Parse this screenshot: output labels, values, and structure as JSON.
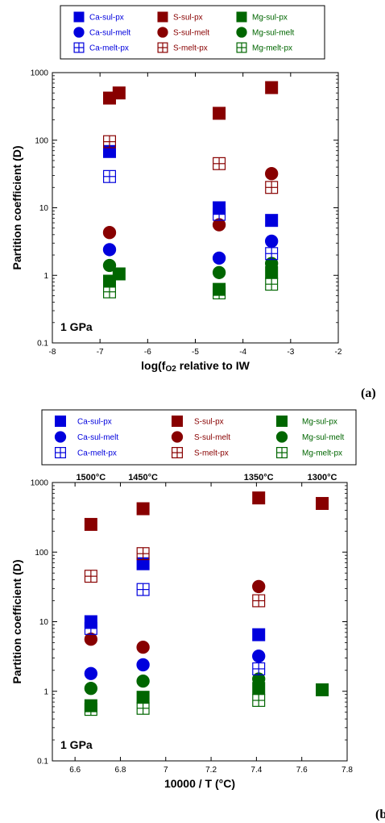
{
  "colors": {
    "Ca": "#0000dd",
    "S": "#880000",
    "Mg": "#006600"
  },
  "legend_items": [
    {
      "label": "Ca-sul-px",
      "el": "Ca",
      "mk": "fsq"
    },
    {
      "label": "S-sul-px",
      "el": "S",
      "mk": "fsq"
    },
    {
      "label": "Mg-sul-px",
      "el": "Mg",
      "mk": "fsq"
    },
    {
      "label": "Ca-sul-melt",
      "el": "Ca",
      "mk": "circ"
    },
    {
      "label": "S-sul-melt",
      "el": "S",
      "mk": "circ"
    },
    {
      "label": "Mg-sul-melt",
      "el": "Mg",
      "mk": "circ"
    },
    {
      "label": "Ca-melt-px",
      "el": "Ca",
      "mk": "osq"
    },
    {
      "label": "S-melt-px",
      "el": "S",
      "mk": "osq"
    },
    {
      "label": "Mg-melt-px",
      "el": "Mg",
      "mk": "osq"
    }
  ],
  "chart_data": [
    {
      "type": "scatter",
      "panel_label": "(a)",
      "xlabel": "log(fO2) relative to IW",
      "ylabel": "Partition coefficient (D)",
      "xlim": [
        -8,
        -2
      ],
      "ylim": [
        0.1,
        1000
      ],
      "yscale": "log",
      "xticks": [
        -8,
        -7,
        -6,
        -5,
        -4,
        -3,
        -2
      ],
      "yticks": [
        0.1,
        1,
        10,
        100,
        1000
      ],
      "grid": false,
      "legend_position": "top",
      "annotation": "1 GPa",
      "series": [
        {
          "name": "Ca-sul-px",
          "el": "Ca",
          "mk": "fsq",
          "x": [
            -6.8,
            -4.5,
            -3.4
          ],
          "y": [
            68,
            10,
            6.5
          ]
        },
        {
          "name": "S-sul-px",
          "el": "S",
          "mk": "fsq",
          "x": [
            -6.8,
            -6.6,
            -4.5,
            -3.4
          ],
          "y": [
            420,
            500,
            250,
            600
          ]
        },
        {
          "name": "Mg-sul-px",
          "el": "Mg",
          "mk": "fsq",
          "x": [
            -6.8,
            -6.6,
            -4.5,
            -3.4
          ],
          "y": [
            0.82,
            1.05,
            0.62,
            1.1
          ]
        },
        {
          "name": "Ca-sul-melt",
          "el": "Ca",
          "mk": "circ",
          "x": [
            -6.8,
            -4.5,
            -3.4
          ],
          "y": [
            2.4,
            1.8,
            3.2
          ]
        },
        {
          "name": "S-sul-melt",
          "el": "S",
          "mk": "circ",
          "x": [
            -6.8,
            -4.5,
            -3.4
          ],
          "y": [
            4.3,
            5.6,
            32
          ]
        },
        {
          "name": "Mg-sul-melt",
          "el": "Mg",
          "mk": "circ",
          "x": [
            -6.8,
            -4.5,
            -3.4
          ],
          "y": [
            1.4,
            1.1,
            1.5
          ]
        },
        {
          "name": "Ca-melt-px",
          "el": "Ca",
          "mk": "osq",
          "x": [
            -6.8,
            -4.5,
            -3.4
          ],
          "y": [
            29,
            8,
            2.1
          ]
        },
        {
          "name": "S-melt-px",
          "el": "S",
          "mk": "osq",
          "x": [
            -6.8,
            -4.5,
            -3.4
          ],
          "y": [
            95,
            45,
            20
          ]
        },
        {
          "name": "Mg-melt-px",
          "el": "Mg",
          "mk": "osq",
          "x": [
            -6.8,
            -4.5,
            -3.4
          ],
          "y": [
            0.57,
            0.55,
            0.74
          ]
        }
      ]
    },
    {
      "type": "scatter",
      "panel_label": "(b)",
      "xlabel": "10000 / T (°C)",
      "ylabel": "Partition coefficient (D)",
      "xlim": [
        6.5,
        7.8
      ],
      "ylim": [
        0.1,
        1000
      ],
      "yscale": "log",
      "xticks": [
        6.6,
        6.8,
        7,
        7.2,
        7.4,
        7.6,
        7.8
      ],
      "yticks": [
        0.1,
        1,
        10,
        100,
        1000
      ],
      "grid": false,
      "legend_position": "top",
      "annotation": "1 GPa",
      "top_labels": [
        {
          "text": "1500°C",
          "x": 6.67
        },
        {
          "text": "1450°C",
          "x": 6.9
        },
        {
          "text": "1350°C",
          "x": 7.41
        },
        {
          "text": "1300°C",
          "x": 7.69
        }
      ],
      "series": [
        {
          "name": "Ca-sul-px",
          "el": "Ca",
          "mk": "fsq",
          "x": [
            6.67,
            6.9,
            7.41
          ],
          "y": [
            10,
            68,
            6.5
          ]
        },
        {
          "name": "S-sul-px",
          "el": "S",
          "mk": "fsq",
          "x": [
            6.67,
            6.9,
            7.41,
            7.69
          ],
          "y": [
            250,
            420,
            600,
            500
          ]
        },
        {
          "name": "Mg-sul-px",
          "el": "Mg",
          "mk": "fsq",
          "x": [
            6.67,
            6.9,
            7.41,
            7.69
          ],
          "y": [
            0.62,
            0.82,
            1.1,
            1.05
          ]
        },
        {
          "name": "Ca-sul-melt",
          "el": "Ca",
          "mk": "circ",
          "x": [
            6.67,
            6.9,
            7.41
          ],
          "y": [
            1.8,
            2.4,
            3.2
          ]
        },
        {
          "name": "S-sul-melt",
          "el": "S",
          "mk": "circ",
          "x": [
            6.67,
            6.9,
            7.41
          ],
          "y": [
            5.6,
            4.3,
            32
          ]
        },
        {
          "name": "Mg-sul-melt",
          "el": "Mg",
          "mk": "circ",
          "x": [
            6.67,
            6.9,
            7.41
          ],
          "y": [
            1.1,
            1.4,
            1.5
          ]
        },
        {
          "name": "Ca-melt-px",
          "el": "Ca",
          "mk": "osq",
          "x": [
            6.67,
            6.9,
            7.41
          ],
          "y": [
            8,
            29,
            2.1
          ]
        },
        {
          "name": "S-melt-px",
          "el": "S",
          "mk": "osq",
          "x": [
            6.67,
            6.9,
            7.41
          ],
          "y": [
            45,
            95,
            20
          ]
        },
        {
          "name": "Mg-melt-px",
          "el": "Mg",
          "mk": "osq",
          "x": [
            6.67,
            6.9,
            7.41
          ],
          "y": [
            0.55,
            0.57,
            0.74
          ]
        }
      ]
    }
  ]
}
